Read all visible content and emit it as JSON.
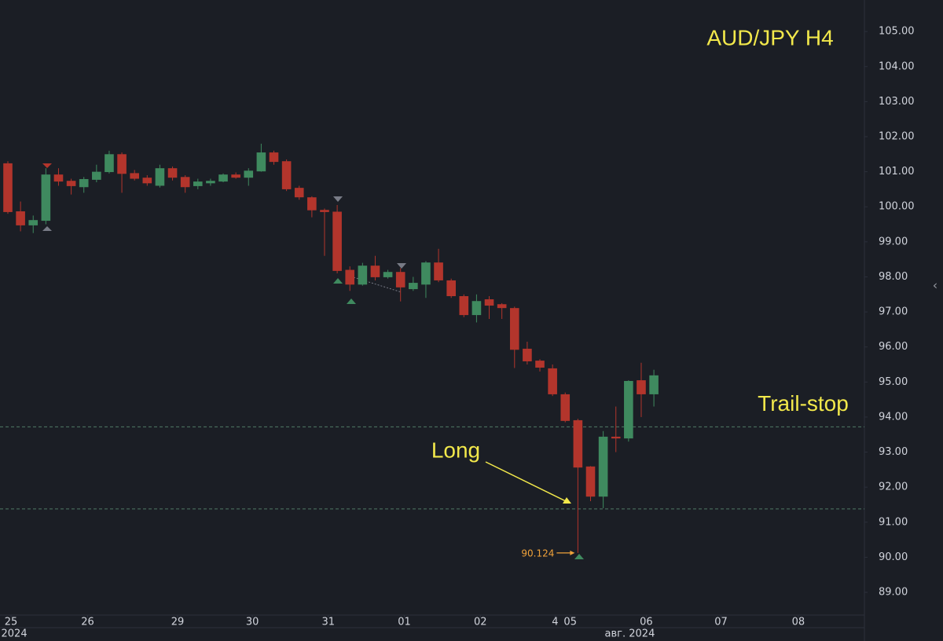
{
  "chart_data": {
    "type": "candlestick",
    "title": "AUD/JPY H4",
    "open": [
      101.24,
      99.87,
      99.47,
      99.6,
      100.92,
      100.74,
      100.56,
      100.77,
      100.99,
      101.5,
      100.96,
      100.83,
      100.6,
      101.1,
      100.85,
      100.59,
      100.67,
      100.72,
      100.92,
      100.83,
      101.01,
      101.55,
      101.3,
      100.54,
      100.27,
      99.91,
      99.86,
      98.2,
      97.78,
      98.32,
      97.99,
      98.14,
      97.65,
      97.78,
      98.41,
      97.9,
      97.45,
      96.91,
      97.36,
      97.22,
      97.11,
      95.95,
      95.61,
      95.39,
      94.65,
      93.91,
      92.59,
      91.73,
      93.44,
      93.39,
      95.05,
      94.65
    ],
    "high": [
      101.3,
      100.15,
      99.75,
      101.1,
      101.1,
      100.8,
      100.85,
      101.2,
      101.6,
      101.55,
      101.05,
      100.9,
      101.2,
      101.15,
      100.9,
      100.8,
      100.8,
      100.95,
      100.98,
      101.1,
      101.8,
      101.6,
      101.35,
      100.6,
      100.3,
      99.95,
      100.05,
      98.3,
      98.4,
      98.6,
      98.2,
      98.25,
      98.0,
      98.45,
      98.8,
      97.95,
      97.5,
      97.5,
      97.45,
      97.25,
      97.15,
      96.15,
      95.65,
      95.5,
      94.7,
      93.95,
      92.6,
      93.6,
      94.3,
      95.05,
      95.55,
      95.35
    ],
    "low": [
      99.8,
      99.3,
      99.25,
      99.5,
      100.6,
      100.35,
      100.4,
      100.7,
      100.95,
      100.4,
      100.75,
      100.6,
      100.55,
      100.75,
      100.4,
      100.5,
      100.6,
      100.7,
      100.8,
      100.6,
      101.0,
      101.2,
      100.45,
      100.2,
      99.7,
      98.6,
      98.1,
      97.6,
      97.75,
      97.9,
      97.95,
      97.3,
      97.6,
      97.4,
      97.85,
      97.4,
      96.85,
      96.7,
      96.8,
      96.8,
      95.4,
      95.5,
      95.3,
      94.6,
      93.85,
      90.124,
      91.6,
      91.4,
      93.0,
      93.3,
      94.0,
      94.3
    ],
    "close": [
      99.85,
      99.47,
      99.62,
      100.92,
      100.72,
      100.59,
      100.79,
      101.0,
      101.5,
      100.94,
      100.8,
      100.67,
      101.1,
      100.83,
      100.56,
      100.72,
      100.74,
      100.92,
      100.83,
      101.03,
      101.55,
      101.28,
      100.5,
      100.27,
      99.9,
      99.85,
      98.17,
      97.78,
      98.32,
      97.99,
      98.14,
      97.7,
      97.83,
      98.41,
      97.9,
      97.45,
      96.91,
      97.31,
      97.18,
      97.11,
      95.92,
      95.59,
      95.41,
      94.65,
      93.89,
      92.56,
      91.73,
      93.44,
      93.39,
      95.03,
      94.65,
      95.19
    ],
    "up_color": "#3f8a5f",
    "down_color": "#b3352c",
    "xlim": [
      -0.62,
      67.62
    ],
    "xticks": [
      {
        "value": 0.25,
        "label": "25"
      },
      {
        "value": 6.3,
        "label": "26"
      },
      {
        "value": 13.4,
        "label": "29"
      },
      {
        "value": 19.3,
        "label": "30"
      },
      {
        "value": 25.3,
        "label": "31"
      },
      {
        "value": 31.3,
        "label": "01"
      },
      {
        "value": 37.3,
        "label": "02"
      },
      {
        "value": 43.2,
        "label": "4"
      },
      {
        "value": 44.4,
        "label": "05"
      },
      {
        "value": 50.4,
        "label": "06"
      },
      {
        "value": 56.3,
        "label": "07"
      },
      {
        "value": 62.4,
        "label": "08"
      }
    ],
    "xticks2": [
      {
        "value": 0.5,
        "label": "2024"
      },
      {
        "value": 49.1,
        "label": "авг. 2024"
      }
    ],
    "ylim": [
      88.35,
      105.9
    ],
    "yticks": [
      {
        "value": 89,
        "label": "89.00"
      },
      {
        "value": 90,
        "label": "90.00"
      },
      {
        "value": 91,
        "label": "91.00"
      },
      {
        "value": 92,
        "label": "92.00"
      },
      {
        "value": 93,
        "label": "93.00"
      },
      {
        "value": 94,
        "label": "94.00"
      },
      {
        "value": 95,
        "label": "95.00"
      },
      {
        "value": 96,
        "label": "96.00"
      },
      {
        "value": 97,
        "label": "97.00"
      },
      {
        "value": 98,
        "label": "98.00"
      },
      {
        "value": 99,
        "label": "99.00"
      },
      {
        "value": 100,
        "label": "100.00"
      },
      {
        "value": 101,
        "label": "101.00"
      },
      {
        "value": 102,
        "label": "102.00"
      },
      {
        "value": 103,
        "label": "103.00"
      },
      {
        "value": 104,
        "label": "104.00"
      },
      {
        "value": 105,
        "label": "105.00"
      }
    ],
    "grid": false,
    "hlines": [
      {
        "value": 93.72,
        "label": "Trail-stop"
      },
      {
        "value": 91.38
      }
    ],
    "annotations": [
      {
        "text": "Long"
      }
    ],
    "low_marker": {
      "value": 90.124,
      "label": "90.124"
    }
  }
}
